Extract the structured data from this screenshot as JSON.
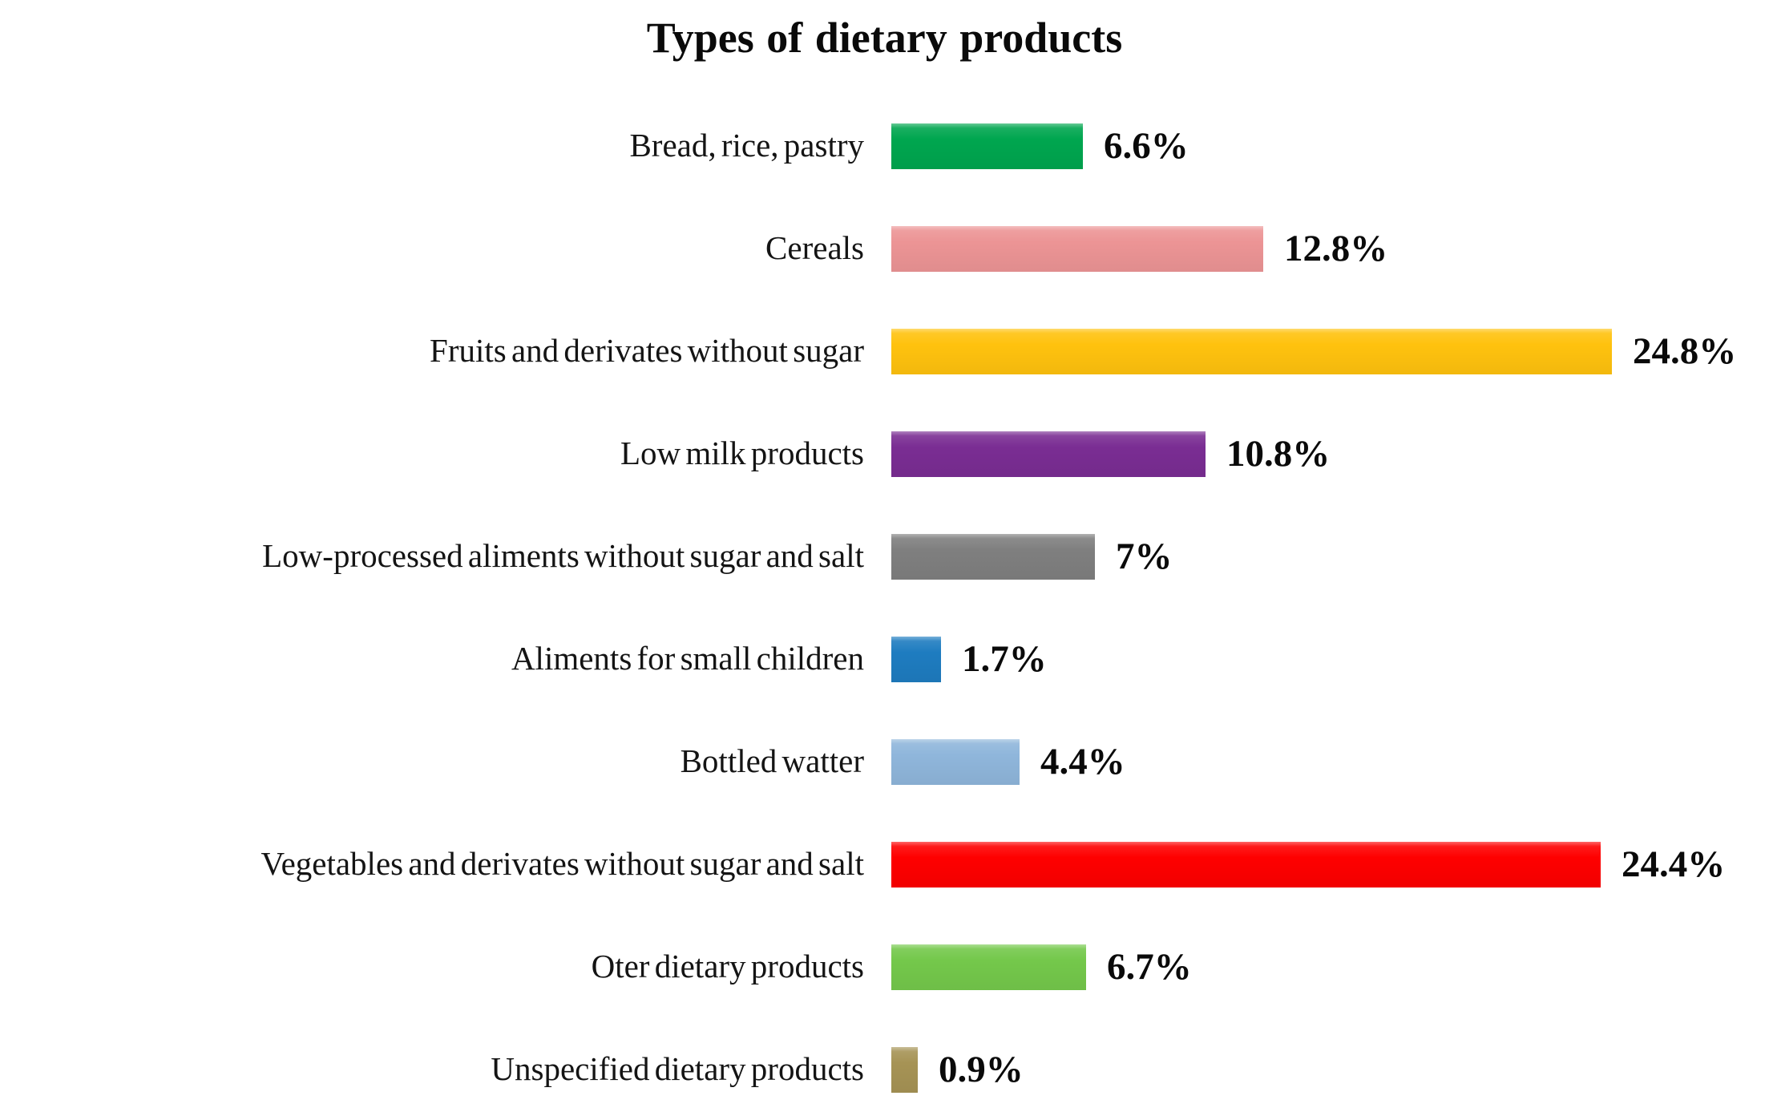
{
  "chart_data": {
    "type": "bar",
    "orientation": "horizontal",
    "title": "Types of dietary products",
    "xlabel": "",
    "ylabel": "",
    "unit": "%",
    "xlim": [
      0,
      25
    ],
    "grid": false,
    "legend": false,
    "axes_visible": false,
    "categories": [
      "Bread, rice, pastry",
      "Cereals",
      "Fruits and derivates without sugar",
      "Low milk products",
      "Low-processed aliments without sugar and salt",
      "Aliments for small children",
      "Bottled watter",
      "Vegetables and derivates without sugar and salt",
      "Oter dietary products",
      "Unspecified dietary products"
    ],
    "values": [
      6.6,
      12.8,
      24.8,
      10.8,
      7,
      1.7,
      4.4,
      24.4,
      6.7,
      0.9
    ],
    "rows": [
      {
        "label": "Bread, rice, pastry",
        "value": 6.6,
        "value_label": "6.6%",
        "color": "#00A64F"
      },
      {
        "label": "Cereals",
        "value": 12.8,
        "value_label": "12.8%",
        "color": "#EC9495"
      },
      {
        "label": "Fruits and derivates without sugar",
        "value": 24.8,
        "value_label": "24.8%",
        "color": "#FFC20E"
      },
      {
        "label": "Low milk products",
        "value": 10.8,
        "value_label": "10.8%",
        "color": "#7A2D93"
      },
      {
        "label": "Low-processed aliments without sugar and salt",
        "value": 7,
        "value_label": "7%",
        "color": "#7F7F7F"
      },
      {
        "label": "Aliments for small children",
        "value": 1.7,
        "value_label": "1.7%",
        "color": "#1E7CC0"
      },
      {
        "label": "Bottled watter",
        "value": 4.4,
        "value_label": "4.4%",
        "color": "#8FB6DB"
      },
      {
        "label": "Vegetables and derivates without sugar and salt",
        "value": 24.4,
        "value_label": "24.4%",
        "color": "#FE0000"
      },
      {
        "label": "Oter dietary products",
        "value": 6.7,
        "value_label": "6.7%",
        "color": "#74C84B"
      },
      {
        "label": "Unspecified dietary products",
        "value": 0.9,
        "value_label": "0.9%",
        "color": "#A69355"
      }
    ]
  }
}
